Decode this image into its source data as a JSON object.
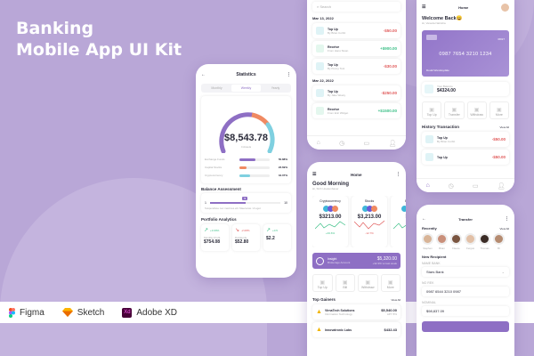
{
  "hero": {
    "line1": "Banking",
    "line2": "Mobile App UI Kit"
  },
  "tools": [
    {
      "name": "Figma",
      "icon": "figma-icon"
    },
    {
      "name": "Sketch",
      "icon": "sketch-icon"
    },
    {
      "name": "Adobe XD",
      "icon": "adobe-xd-icon",
      "badge": "Xd"
    }
  ],
  "colors": {
    "accent": "#8e6fc4",
    "background": "#b9a7d7",
    "orange": "#f08a62",
    "cyan": "#7fd0e0",
    "red": "#e05a5a",
    "green": "#3cbf87"
  },
  "statistics": {
    "title": "Statistics",
    "tabs": [
      "Monthly",
      "Weekly",
      "Yearly"
    ],
    "active_tab": "Weekly",
    "total": "$8,543.78",
    "assets": "4 Assets",
    "breakdown": [
      {
        "label": "Exchange Funds",
        "value": "50.88%",
        "pct": 50.88,
        "color": "#8e6fc4"
      },
      {
        "label": "Capital Stocks",
        "value": "23.69%",
        "pct": 23.69,
        "color": "#f08a62"
      },
      {
        "label": "Cryptocurrency",
        "value": "34.07%",
        "pct": 34.07,
        "color": "#7fd0e0"
      }
    ],
    "balance_title": "Balance Assessment",
    "slider_min": "1",
    "slider_max": "10",
    "slider_value": "5",
    "slider_note": "Suspendisse nec maximus elit. Maecenas. Ut eget.",
    "portfolio_title": "Portfolio Analytics",
    "portfolio": [
      {
        "change": "+3.09%",
        "label": "Monthly Profit",
        "value": "$754.08",
        "trend": "up"
      },
      {
        "change": "-2.08%",
        "label": "Dividends",
        "value": "$52.80",
        "trend": "down"
      },
      {
        "change": "+0.5",
        "label": "",
        "value": "$2.2",
        "trend": "up"
      }
    ]
  },
  "transactions": {
    "search_placeholder": "Search",
    "groups": [
      {
        "date": "Mar 13, 2022",
        "items": [
          {
            "title": "Top Up",
            "sub": "By Brian Corbit",
            "amount": "-$50.00",
            "type": "out"
          },
          {
            "title": "Receive",
            "sub": "From Hans Sloan",
            "amount": "+$900.00",
            "type": "in"
          },
          {
            "title": "Top Up",
            "sub": "By Penny Tool",
            "amount": "-$30.00",
            "type": "out"
          }
        ]
      },
      {
        "date": "Mar 22, 2022",
        "items": [
          {
            "title": "Top Up",
            "sub": "By Jake Weary",
            "amount": "-$250.00",
            "type": "out"
          },
          {
            "title": "Receive",
            "sub": "From Eric Widget",
            "amount": "+$1500.00",
            "type": "in"
          }
        ]
      }
    ]
  },
  "home": {
    "title": "Home",
    "greeting": "Good Morning",
    "user": "Hi, Sirth Hoekenbauer",
    "markets": [
      {
        "label": "Cryptocurrency",
        "value": "$3213.00",
        "change": "+33.6%",
        "trend": "up"
      },
      {
        "label": "Stocks",
        "value": "$3,213.00",
        "change": "-12.7%",
        "trend": "down"
      },
      {
        "label": "Exch",
        "value": "$5",
        "change": "",
        "trend": "up"
      }
    ],
    "insight": {
      "title": "Insight",
      "sub": "Brokerage Account",
      "value": "$5,320.00",
      "change": "+32.3% vs last week"
    },
    "actions": [
      "Top Up",
      "Bill",
      "Withdraw",
      "More"
    ],
    "gainers_title": "Top Gainers",
    "view_all": "View All",
    "gainers": [
      {
        "name": "VirnaTech Solutions",
        "sector": "Information Technology",
        "value": "$5,540.00",
        "change": "APY 8%"
      },
      {
        "name": "Innovatronic Labs",
        "sector": "",
        "value": "$432.43",
        "change": ""
      }
    ]
  },
  "welcome": {
    "title": "Home",
    "greeting": "Welcome Back😀",
    "user": "Hi, Vaneda Natrisha",
    "card": {
      "number": "0987 7654 3210 1234",
      "expiry": "08/27",
      "holder": "Dould Wensleydale"
    },
    "balance_label": "Your Balance",
    "balance": "$4324.00",
    "actions": [
      "Top Up",
      "Transfer",
      "Withdraw",
      "More"
    ],
    "history_title": "History Transaction",
    "view_all": "View All",
    "history": [
      {
        "title": "Top Up",
        "sub": "By Brian Corbit",
        "amount": "-$50.00"
      },
      {
        "title": "Top Up",
        "sub": "",
        "amount": "-$50.00"
      }
    ]
  },
  "transfer": {
    "title": "Transfer",
    "recent_title": "Recently",
    "view_all": "View All",
    "recent": [
      "Stephen",
      "Brian",
      "Fleece",
      "Fergus",
      "Thomas",
      "Br"
    ],
    "new_title": "New Recipient",
    "bank_label": "NAME BANK",
    "bank_value": "Stars Bank",
    "acct_label": "NO REK",
    "acct_value": "0987 6544 3210 0987",
    "nominal_label": "NOMINAL",
    "nominal_value": "$98,837.09"
  }
}
